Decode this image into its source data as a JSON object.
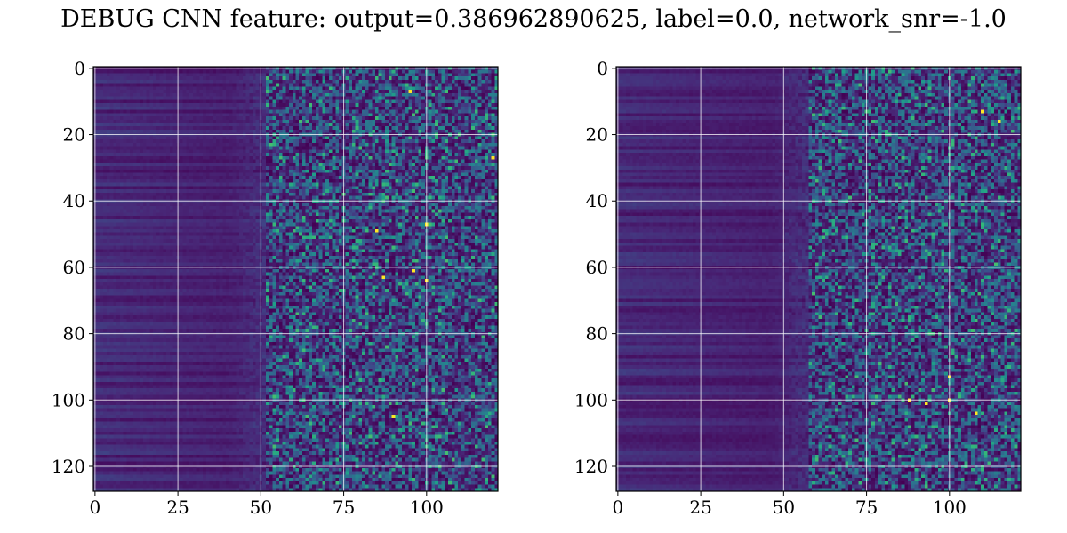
{
  "title": "DEBUG CNN feature: output=0.386962890625, label=0.0, network_snr=-1.0",
  "colors": {
    "colormap": "viridis",
    "low": "#440154",
    "mid": "#21918c",
    "high": "#fde725",
    "grid": "#ffffff"
  },
  "chart_data": [
    {
      "type": "heatmap",
      "title": "",
      "xlabel": "",
      "ylabel": "",
      "shape": [
        128,
        122
      ],
      "xlim": [
        -0.5,
        121.5
      ],
      "ylim": [
        127.5,
        -0.5
      ],
      "xticks": [
        0,
        25,
        50,
        75,
        100
      ],
      "xtick_labels": [
        "0",
        "25",
        "50",
        "75",
        "100"
      ],
      "yticks": [
        0,
        20,
        40,
        60,
        80,
        100,
        120
      ],
      "ytick_labels": [
        "0",
        "20",
        "40",
        "60",
        "80",
        "100",
        "120"
      ],
      "grid": true,
      "colormap": "viridis",
      "pattern": "rows of low-valued stripes for columns 0-50, noisy mid-valued cells from column ~55 onward with sparse bright outliers",
      "bright_cells": [
        [
          95,
          7
        ],
        [
          85,
          49
        ],
        [
          100,
          47
        ],
        [
          87,
          63
        ],
        [
          100,
          64
        ],
        [
          96,
          61
        ],
        [
          120,
          27
        ],
        [
          90,
          105
        ]
      ]
    },
    {
      "type": "heatmap",
      "title": "",
      "xlabel": "",
      "ylabel": "",
      "shape": [
        128,
        122
      ],
      "xlim": [
        -0.5,
        121.5
      ],
      "ylim": [
        127.5,
        -0.5
      ],
      "xticks": [
        0,
        25,
        50,
        75,
        100
      ],
      "xtick_labels": [
        "0",
        "25",
        "50",
        "75",
        "100"
      ],
      "yticks": [
        0,
        20,
        40,
        60,
        80,
        100,
        120
      ],
      "ytick_labels": [
        "0",
        "20",
        "40",
        "60",
        "80",
        "100",
        "120"
      ],
      "grid": true,
      "colormap": "viridis",
      "pattern": "rows of low-valued stripes for columns 0-55, noisy mid-valued cells from column ~60 onward with sparse bright outliers",
      "bright_cells": [
        [
          110,
          13
        ],
        [
          115,
          16
        ],
        [
          100,
          93
        ],
        [
          88,
          100
        ],
        [
          93,
          101
        ],
        [
          100,
          100
        ],
        [
          108,
          104
        ]
      ]
    }
  ]
}
